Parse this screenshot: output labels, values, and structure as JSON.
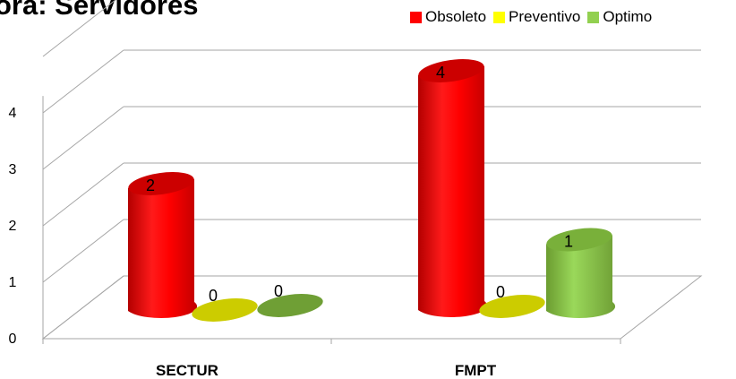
{
  "title": "ora: Servidores",
  "chart_data": {
    "type": "bar",
    "style": "3d-cylinder",
    "title": "ora: Servidores",
    "categories": [
      "SECTUR",
      "FMPT"
    ],
    "series": [
      {
        "name": "Obsoleto",
        "color": "#ff0000",
        "values": [
          2,
          4
        ]
      },
      {
        "name": "Preventivo",
        "color": "#ffff00",
        "values": [
          0,
          0
        ]
      },
      {
        "name": "Optimo",
        "color": "#92d050",
        "values": [
          0,
          1
        ]
      }
    ],
    "yticks": [
      "0",
      "1",
      "2",
      "3",
      "4"
    ],
    "ylim": [
      0,
      4.8
    ],
    "grid": true,
    "legend": "top-right"
  }
}
